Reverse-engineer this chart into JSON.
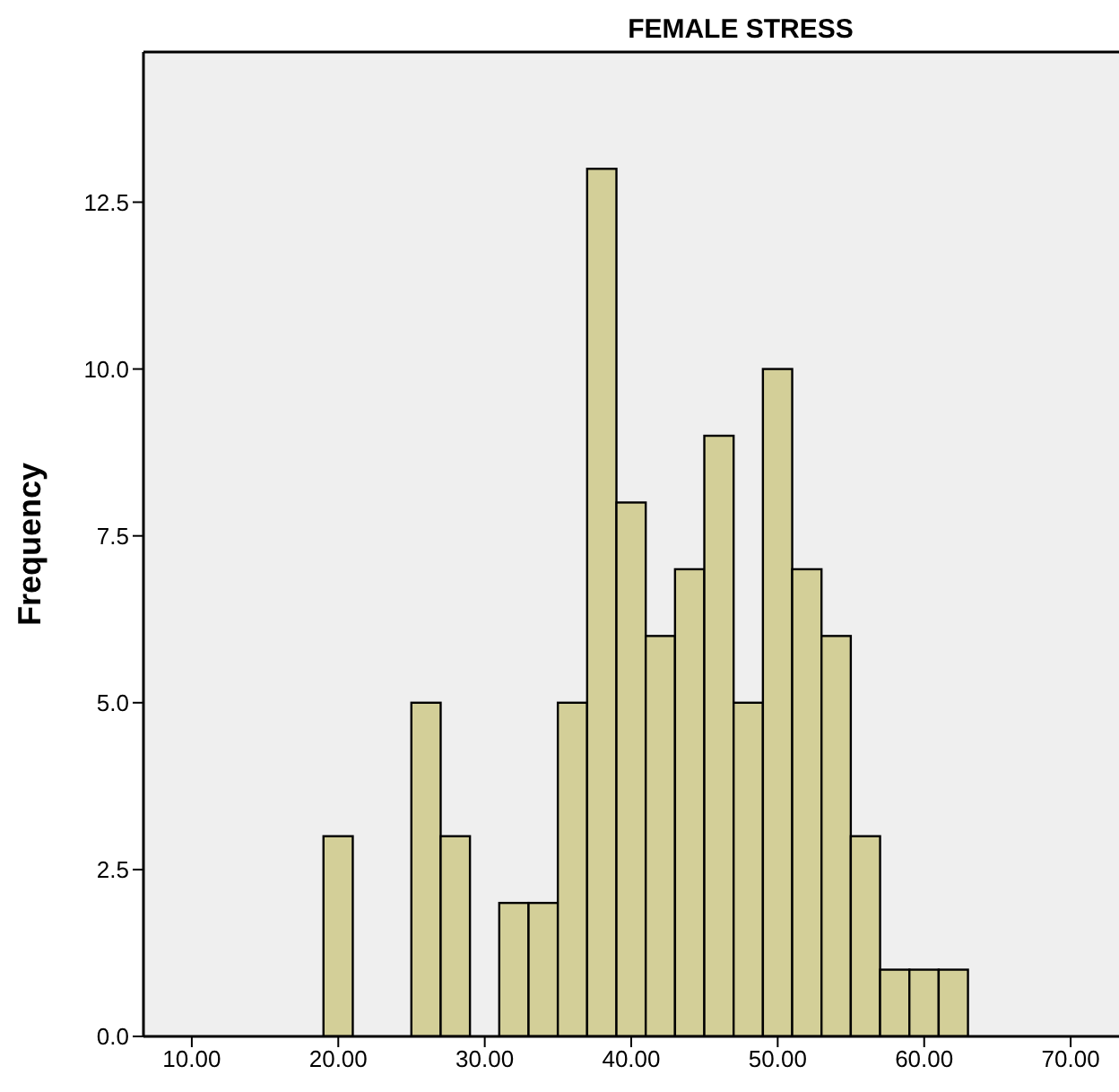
{
  "chart_data": {
    "type": "histogram",
    "title": "FEMALE STRESS",
    "ylabel": "Frequency",
    "bins": [
      19,
      21,
      23,
      25,
      27,
      29,
      31,
      33,
      35,
      37,
      39,
      41,
      43,
      45,
      47,
      49,
      51,
      53,
      55,
      57,
      59,
      61,
      63
    ],
    "values": [
      3,
      0,
      0,
      5,
      3,
      0,
      2,
      2,
      5,
      13,
      8,
      6,
      7,
      9,
      5,
      10,
      7,
      6,
      3,
      1,
      1,
      1
    ],
    "color": "#d3cf98",
    "xlim": [
      6.7,
      73.3
    ],
    "xticks": [
      {
        "value": 10,
        "label": "10.00"
      },
      {
        "value": 20,
        "label": "20.00"
      },
      {
        "value": 30,
        "label": "30.00"
      },
      {
        "value": 40,
        "label": "40.00"
      },
      {
        "value": 50,
        "label": "50.00"
      },
      {
        "value": 60,
        "label": "60.00"
      },
      {
        "value": 70,
        "label": "70.00"
      }
    ],
    "ylim": [
      0,
      14.75
    ],
    "yticks": [
      {
        "value": 0,
        "label": "0.0"
      },
      {
        "value": 2.5,
        "label": "2.5"
      },
      {
        "value": 5,
        "label": "5.0"
      },
      {
        "value": 7.5,
        "label": "7.5"
      },
      {
        "value": 10,
        "label": "10.0"
      },
      {
        "value": 12.5,
        "label": "12.5"
      }
    ],
    "grid": false
  }
}
